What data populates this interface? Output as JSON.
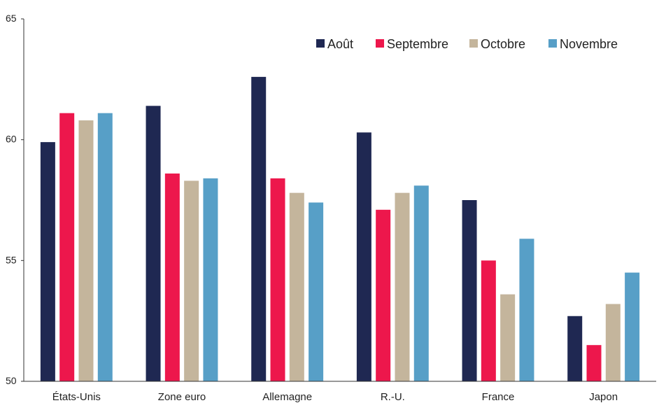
{
  "chart_data": {
    "type": "bar",
    "title": "",
    "xlabel": "",
    "ylabel": "",
    "ylim": [
      50,
      65
    ],
    "yticks": [
      50,
      55,
      60,
      65
    ],
    "grid": false,
    "legend_position": "top-right",
    "categories": [
      "États-Unis",
      "Zone euro",
      "Allemagne",
      "R.-U.",
      "France",
      "Japon"
    ],
    "series": [
      {
        "name": "Août",
        "color": "#1f2852",
        "values": [
          59.9,
          61.4,
          62.6,
          60.3,
          57.5,
          52.7
        ]
      },
      {
        "name": "Septembre",
        "color": "#ed174c",
        "values": [
          61.1,
          58.6,
          58.4,
          57.1,
          55.0,
          51.5
        ]
      },
      {
        "name": "Octobre",
        "color": "#c4b59c",
        "values": [
          60.8,
          58.3,
          57.8,
          57.8,
          53.6,
          53.2
        ]
      },
      {
        "name": "Novembre",
        "color": "#579fc7",
        "values": [
          61.1,
          58.4,
          57.4,
          58.1,
          55.9,
          54.5
        ]
      }
    ]
  }
}
